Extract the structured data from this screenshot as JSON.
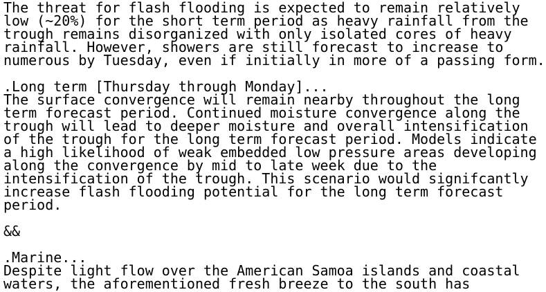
{
  "document": {
    "short_term_paragraph": "The threat for flash flooding is expected to remain relatively\nlow (~20%) for the short term period as heavy rainfall from the\ntrough remains disorganized with only isolated cores of heavy\nrainfall. However, showers are still forecast to increase to\nnumerous by Tuesday, even if initially in more of a passing form.",
    "long_term_heading": ".Long term [Thursday through Monday]...",
    "long_term_paragraph": "The surface convergence will remain nearby throughout the long\nterm forecast period. Continued moisture convergence along the\ntrough will lead to deeper moisture and overall intensification\nof the trough for the long term forecast period. Models indicate\na high likelihood of weak embedded low pressure areas developing\nalong the convergence by mid to late week due to the\nintensification of the trough. This scenario would signifcantly\nincrease flash flooding potential for the long term forecast\nperiod.",
    "section_separator": "&&",
    "marine_heading": ".Marine...",
    "marine_paragraph": "Despite light flow over the American Samoa islands and coastal\nwaters, the aforementioned fresh breeze to the south has"
  },
  "colors": {
    "text": "#000000",
    "background": "#ffffff"
  }
}
